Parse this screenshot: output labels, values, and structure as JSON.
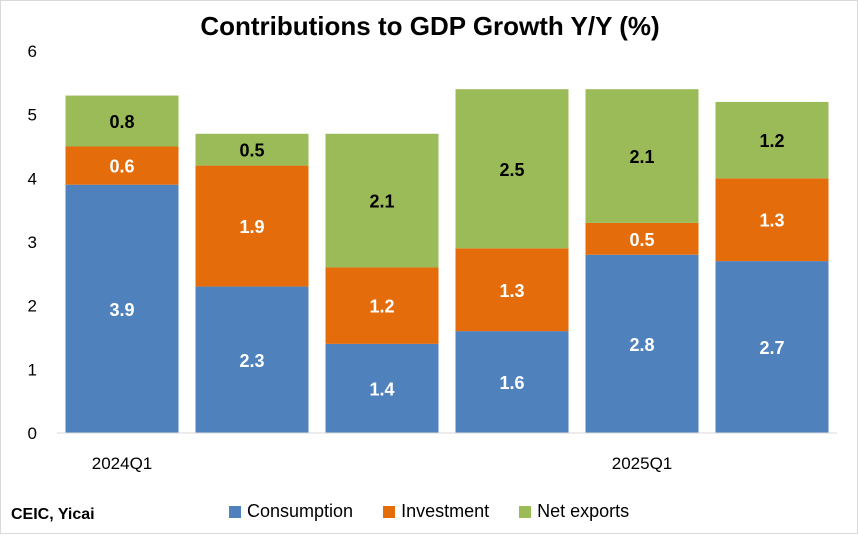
{
  "chart_data": {
    "type": "bar",
    "stacked": true,
    "title": "Contributions to GDP Growth Y/Y (%)",
    "categories": [
      "2024Q1",
      "",
      "",
      "",
      "2025Q1",
      ""
    ],
    "series": [
      {
        "name": "Consumption",
        "color": "#4f81bd",
        "values": [
          3.9,
          2.3,
          1.4,
          1.6,
          2.8,
          2.7
        ],
        "label_color": "#ffffff"
      },
      {
        "name": "Investment",
        "color": "#e46c0a",
        "values": [
          0.6,
          1.9,
          1.2,
          1.3,
          0.5,
          1.3
        ],
        "label_color": "#ffffff"
      },
      {
        "name": "Net exports",
        "color": "#9bbb59",
        "values": [
          0.8,
          0.5,
          2.1,
          2.5,
          2.1,
          1.2
        ],
        "label_color": "#000000"
      }
    ],
    "ylim": [
      0,
      6
    ],
    "yticks": [
      0,
      1,
      2,
      3,
      4,
      5,
      6
    ],
    "grid": false,
    "legend_position": "bottom"
  },
  "source": "CEIC, Yicai"
}
